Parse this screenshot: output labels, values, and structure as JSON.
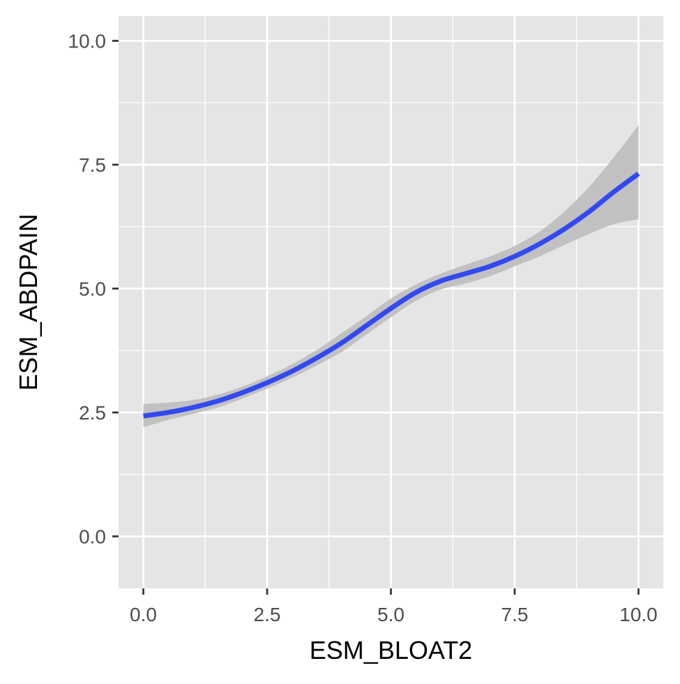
{
  "chart_data": {
    "type": "line",
    "title": "",
    "xlabel": "ESM_BLOAT2",
    "ylabel": "ESM_ABDPAIN",
    "xlim": [
      -0.5,
      10.5
    ],
    "ylim": [
      -1.05,
      10.5
    ],
    "x_ticks": [
      0,
      2.5,
      5,
      7.5,
      10
    ],
    "x_tick_labels": [
      "0.0",
      "2.5",
      "5.0",
      "7.5",
      "10.0"
    ],
    "y_ticks": [
      0,
      2.5,
      5,
      7.5,
      10
    ],
    "y_tick_labels": [
      "0.0",
      "2.5",
      "5.0",
      "7.5",
      "10.0"
    ],
    "grid": true,
    "legend": "none",
    "colors": {
      "panel_background": "#e5e5e5",
      "grid": "#ffffff",
      "line": "#3349f0",
      "ribbon": "#bdbdbd"
    },
    "series": [
      {
        "type": "smooth-with-confidence-band",
        "x": [
          0,
          0.5,
          1,
          1.5,
          2,
          2.5,
          3,
          3.5,
          4,
          4.5,
          5,
          5.5,
          6,
          6.5,
          7,
          7.5,
          8,
          8.5,
          9,
          9.5,
          10
        ],
        "y": [
          2.43,
          2.5,
          2.6,
          2.73,
          2.9,
          3.1,
          3.33,
          3.6,
          3.9,
          4.25,
          4.6,
          4.92,
          5.15,
          5.3,
          5.45,
          5.65,
          5.9,
          6.2,
          6.55,
          6.95,
          7.32
        ],
        "lower": [
          2.2,
          2.35,
          2.47,
          2.6,
          2.78,
          2.98,
          3.2,
          3.45,
          3.72,
          4.07,
          4.42,
          4.75,
          4.98,
          5.1,
          5.25,
          5.45,
          5.65,
          5.88,
          6.1,
          6.3,
          6.4
        ],
        "upper": [
          2.67,
          2.7,
          2.75,
          2.86,
          3.02,
          3.23,
          3.47,
          3.76,
          4.1,
          4.44,
          4.8,
          5.08,
          5.3,
          5.48,
          5.65,
          5.86,
          6.15,
          6.55,
          7.05,
          7.65,
          8.3
        ]
      }
    ]
  }
}
